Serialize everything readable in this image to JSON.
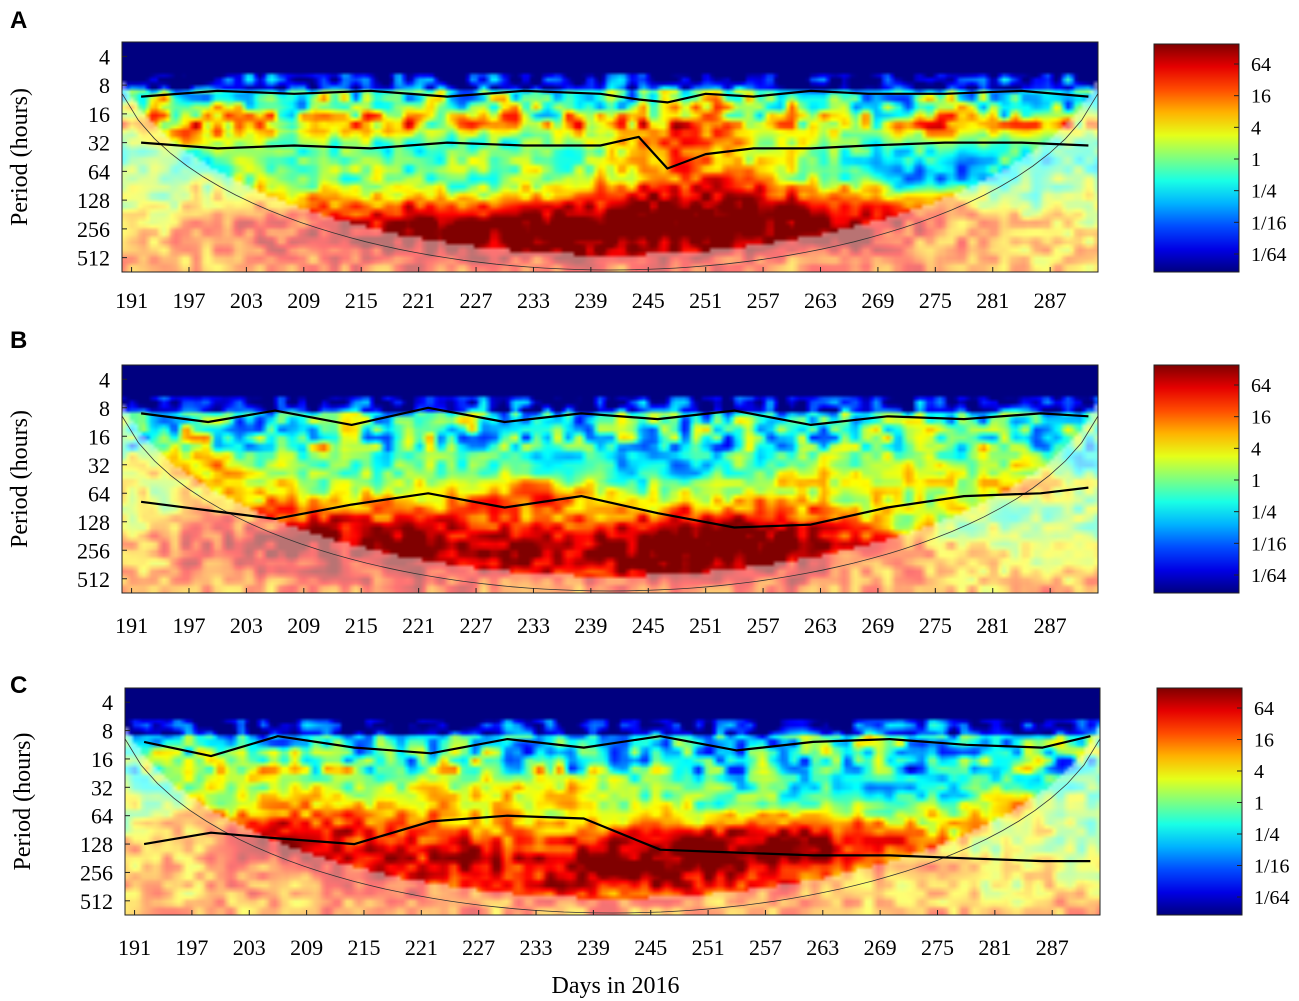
{
  "chart_data": [
    {
      "type": "heatmap",
      "panel_label": "A",
      "ylabel": "Period (hours)",
      "xlabel": "",
      "x_ticks": [
        "191",
        "197",
        "203",
        "209",
        "215",
        "221",
        "227",
        "233",
        "239",
        "245",
        "251",
        "257",
        "263",
        "269",
        "275",
        "281",
        "287"
      ],
      "y_ticks": [
        "4",
        "8",
        "16",
        "32",
        "64",
        "128",
        "256",
        "512"
      ],
      "colorbar_ticks": [
        "64",
        "16",
        "4",
        "1",
        "1/4",
        "1/16",
        "1/64"
      ],
      "xlim": [
        190,
        292
      ],
      "ylim_log2": [
        1.5,
        9.5
      ],
      "blobs": [
        {
          "x": 240,
          "log2p": 8.0,
          "sx": 22,
          "sy": 0.85,
          "a": 4.5
        },
        {
          "x": 262,
          "log2p": 7.7,
          "sx": 14,
          "sy": 0.7,
          "a": 2.5
        },
        {
          "x": 216,
          "log2p": 8.1,
          "sx": 16,
          "sy": 0.8,
          "a": 2.2
        },
        {
          "x": 249,
          "log2p": 4.8,
          "sx": 7,
          "sy": 1.0,
          "a": 3.5
        },
        {
          "x": 207,
          "log2p": 4.3,
          "sx": 10,
          "sy": 0.4,
          "a": 3.0
        },
        {
          "x": 278,
          "log2p": 4.4,
          "sx": 14,
          "sy": 0.35,
          "a": 3.0
        },
        {
          "x": 229,
          "log2p": 4.3,
          "sx": 12,
          "sy": 0.35,
          "a": 2.5
        },
        {
          "x": 194,
          "log2p": 4.4,
          "sx": 5,
          "sy": 0.5,
          "a": 2.5
        },
        {
          "x": 252,
          "log2p": 6.6,
          "sx": 10,
          "sy": 0.6,
          "a": 2.0
        },
        {
          "x": 272,
          "log2p": 6.0,
          "sx": 9,
          "sy": 0.5,
          "a": -3.0
        },
        {
          "x": 228,
          "log2p": 6.4,
          "sx": 9,
          "sy": 0.6,
          "a": -1.0
        }
      ],
      "thresholds": [
        {
          "x": [
            192,
            200,
            208,
            216,
            224,
            232,
            240,
            244,
            247,
            251,
            256,
            262,
            268,
            276,
            284,
            291
          ],
          "log2p": [
            3.4,
            3.2,
            3.3,
            3.2,
            3.4,
            3.2,
            3.3,
            3.5,
            3.6,
            3.3,
            3.4,
            3.2,
            3.3,
            3.3,
            3.2,
            3.4
          ]
        },
        {
          "x": [
            192,
            200,
            208,
            216,
            224,
            232,
            240,
            244,
            247,
            251,
            256,
            262,
            268,
            276,
            284,
            291
          ],
          "log2p": [
            5.0,
            5.2,
            5.1,
            5.2,
            5.0,
            5.1,
            5.1,
            4.8,
            5.9,
            5.4,
            5.2,
            5.2,
            5.1,
            5.0,
            5.0,
            5.1
          ]
        }
      ]
    },
    {
      "type": "heatmap",
      "panel_label": "B",
      "ylabel": "Period (hours)",
      "xlabel": "",
      "x_ticks": [
        "191",
        "197",
        "203",
        "209",
        "215",
        "221",
        "227",
        "233",
        "239",
        "245",
        "251",
        "257",
        "263",
        "269",
        "275",
        "281",
        "287"
      ],
      "y_ticks": [
        "4",
        "8",
        "16",
        "32",
        "64",
        "128",
        "256",
        "512"
      ],
      "colorbar_ticks": [
        "64",
        "16",
        "4",
        "1",
        "1/4",
        "1/16",
        "1/64"
      ],
      "xlim": [
        190,
        292
      ],
      "ylim_log2": [
        1.5,
        9.5
      ],
      "blobs": [
        {
          "x": 210,
          "log2p": 7.3,
          "sx": 14,
          "sy": 1.0,
          "a": 3.5
        },
        {
          "x": 255,
          "log2p": 7.4,
          "sx": 12,
          "sy": 0.9,
          "a": 4.5
        },
        {
          "x": 232,
          "log2p": 8.2,
          "sx": 24,
          "sy": 0.8,
          "a": 3.0
        },
        {
          "x": 233,
          "log2p": 6.0,
          "sx": 5,
          "sy": 0.4,
          "a": 2.5
        },
        {
          "x": 283,
          "log2p": 5.8,
          "sx": 5,
          "sy": 0.5,
          "a": 2.0
        },
        {
          "x": 197,
          "log2p": 5.0,
          "sx": 8,
          "sy": 0.7,
          "a": 2.0
        },
        {
          "x": 270,
          "log2p": 5.2,
          "sx": 8,
          "sy": 0.6,
          "a": 1.5
        },
        {
          "x": 245,
          "log2p": 5.0,
          "sx": 6,
          "sy": 0.8,
          "a": -1.5
        },
        {
          "x": 275,
          "log2p": 6.8,
          "sx": 8,
          "sy": 0.6,
          "a": -1.2
        }
      ],
      "thresholds": [
        {
          "x": [
            192,
            199,
            206,
            214,
            222,
            230,
            238,
            246,
            254,
            262,
            270,
            278,
            286,
            291
          ],
          "log2p": [
            3.2,
            3.5,
            3.1,
            3.6,
            3.0,
            3.5,
            3.2,
            3.4,
            3.1,
            3.6,
            3.3,
            3.4,
            3.2,
            3.3
          ]
        },
        {
          "x": [
            192,
            199,
            206,
            214,
            222,
            230,
            238,
            246,
            254,
            262,
            270,
            278,
            286,
            291
          ],
          "log2p": [
            6.3,
            6.6,
            6.9,
            6.4,
            6.0,
            6.5,
            6.1,
            6.7,
            7.2,
            7.1,
            6.5,
            6.1,
            6.0,
            5.8
          ]
        }
      ]
    },
    {
      "type": "heatmap",
      "panel_label": "C",
      "ylabel": "Period (hours)",
      "xlabel": "Days in 2016",
      "x_ticks": [
        "191",
        "197",
        "203",
        "209",
        "215",
        "221",
        "227",
        "233",
        "239",
        "245",
        "251",
        "257",
        "263",
        "269",
        "275",
        "281",
        "287"
      ],
      "y_ticks": [
        "4",
        "8",
        "16",
        "32",
        "64",
        "128",
        "256",
        "512"
      ],
      "colorbar_ticks": [
        "64",
        "16",
        "4",
        "1",
        "1/4",
        "1/16",
        "1/64"
      ],
      "xlim": [
        190,
        292
      ],
      "ylim_log2": [
        1.5,
        9.5
      ],
      "blobs": [
        {
          "x": 208,
          "log2p": 6.6,
          "sx": 12,
          "sy": 0.9,
          "a": 3.5
        },
        {
          "x": 252,
          "log2p": 7.2,
          "sx": 15,
          "sy": 0.8,
          "a": 4.5
        },
        {
          "x": 228,
          "log2p": 8.0,
          "sx": 24,
          "sy": 0.9,
          "a": 2.5
        },
        {
          "x": 232,
          "log2p": 5.2,
          "sx": 10,
          "sy": 0.6,
          "a": 2.0
        },
        {
          "x": 284,
          "log2p": 5.5,
          "sx": 5,
          "sy": 0.5,
          "a": 2.0
        },
        {
          "x": 266,
          "log2p": 6.5,
          "sx": 8,
          "sy": 0.6,
          "a": 1.5
        },
        {
          "x": 200,
          "log2p": 4.3,
          "sx": 7,
          "sy": 0.5,
          "a": 1.5
        },
        {
          "x": 275,
          "log2p": 5.0,
          "sx": 9,
          "sy": 0.6,
          "a": -1.5
        },
        {
          "x": 250,
          "log2p": 5.5,
          "sx": 5,
          "sy": 0.5,
          "a": -1.0
        }
      ],
      "thresholds": [
        {
          "x": [
            192,
            199,
            206,
            214,
            222,
            230,
            238,
            246,
            254,
            262,
            270,
            278,
            286,
            291
          ],
          "log2p": [
            3.4,
            3.9,
            3.2,
            3.6,
            3.8,
            3.3,
            3.6,
            3.2,
            3.7,
            3.4,
            3.3,
            3.5,
            3.6,
            3.2
          ]
        },
        {
          "x": [
            192,
            199,
            206,
            214,
            222,
            230,
            238,
            246,
            254,
            262,
            270,
            278,
            286,
            291
          ],
          "log2p": [
            7.0,
            6.6,
            6.8,
            7.0,
            6.2,
            6.0,
            6.1,
            7.2,
            7.3,
            7.4,
            7.4,
            7.5,
            7.6,
            7.6
          ]
        }
      ]
    }
  ]
}
